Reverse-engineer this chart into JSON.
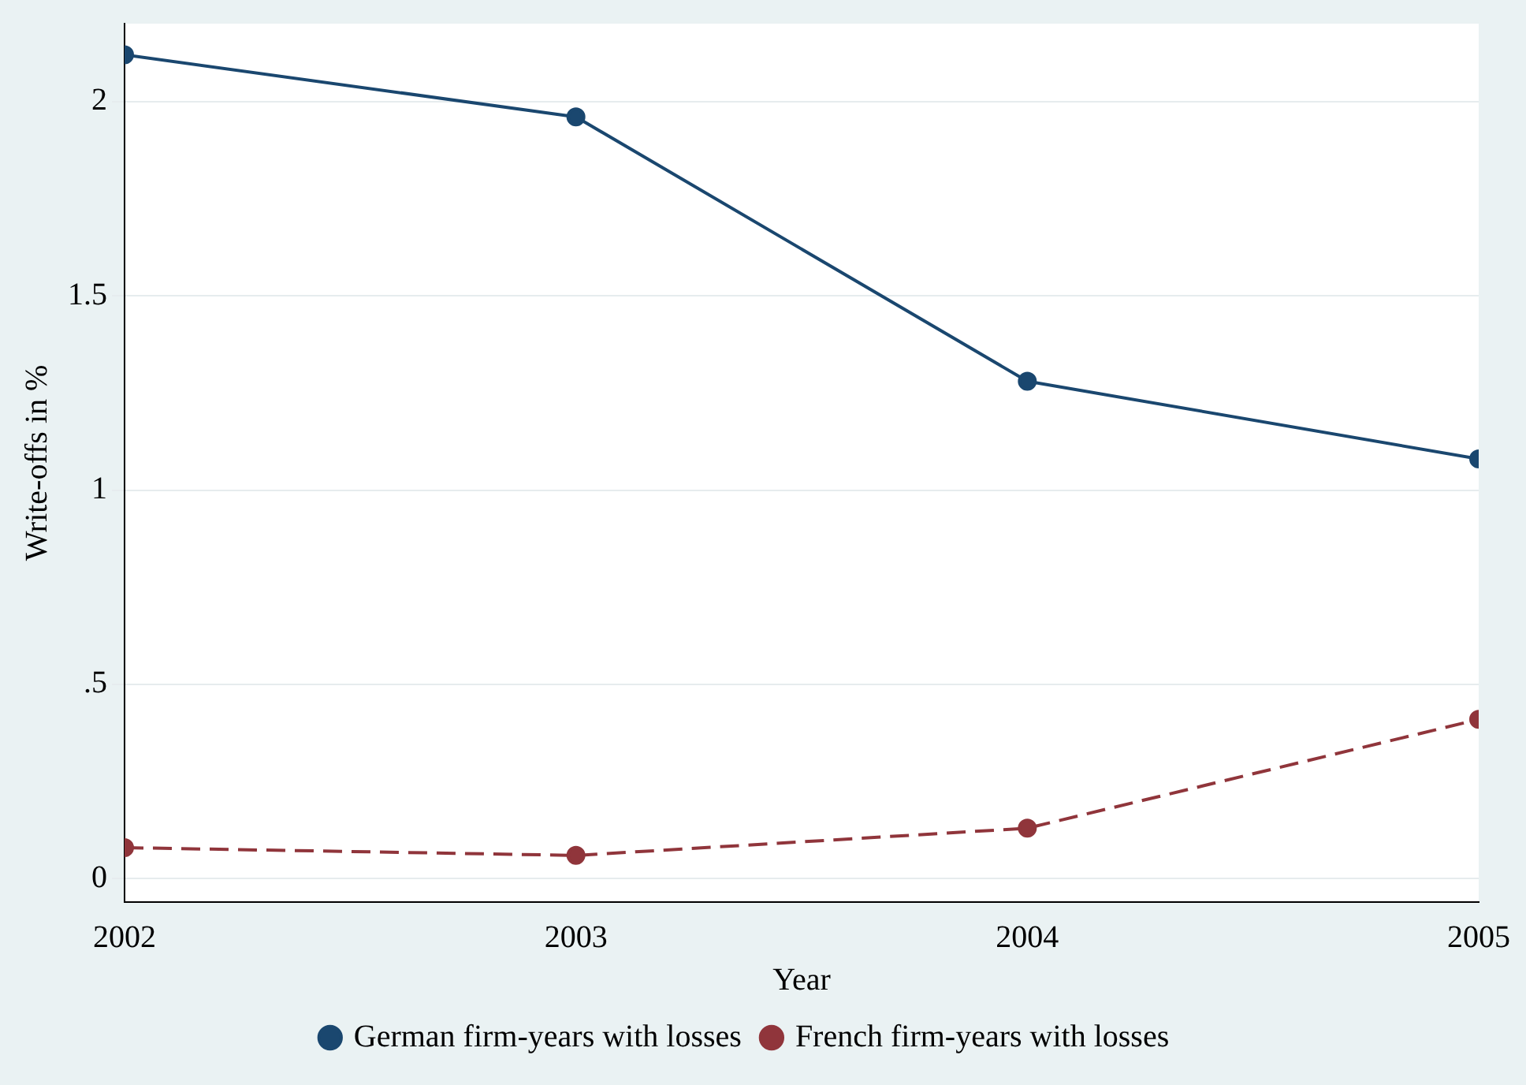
{
  "chart_data": {
    "type": "line",
    "xlabel": "Year",
    "ylabel": "Write-offs in %",
    "x": [
      2002,
      2003,
      2004,
      2005
    ],
    "series": [
      {
        "name": "German firm-years with losses",
        "color": "#1a476f",
        "values": [
          2.12,
          1.96,
          1.28,
          1.08
        ],
        "line_style": "solid"
      },
      {
        "name": "French firm-years with losses",
        "color": "#90353b",
        "values": [
          0.08,
          0.06,
          0.13,
          0.41
        ],
        "line_style": "dashed"
      }
    ],
    "xlim": [
      2002,
      2005
    ],
    "xticks": [
      2002,
      2003,
      2004,
      2005
    ],
    "ylim": [
      -0.06,
      2.2
    ],
    "yticks": [
      0,
      {
        "value": 0.5,
        "label": ".5"
      },
      1,
      1.5,
      2
    ],
    "grid": "y",
    "legend": "bottom",
    "marker": "circle"
  }
}
